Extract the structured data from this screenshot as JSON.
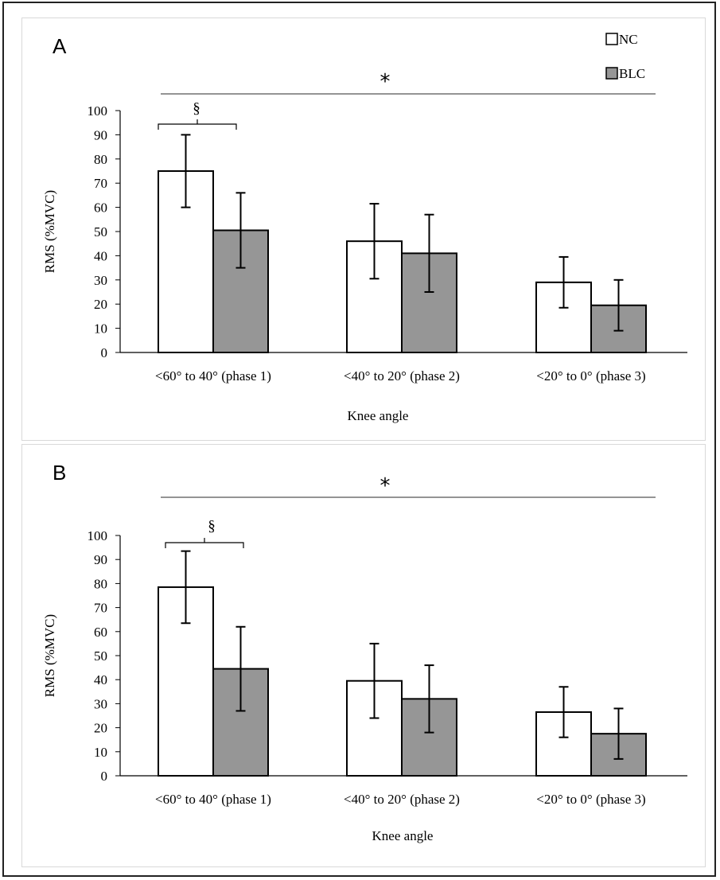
{
  "chart_data": [
    {
      "type": "bar",
      "panel": "A",
      "categories": [
        "<60° to 40° (phase 1)",
        "<40° to 20° (phase 2)",
        "<20° to 0° (phase 3)"
      ],
      "series": [
        {
          "name": "NC",
          "color": "#ffffff",
          "values": [
            75,
            46,
            29
          ],
          "errors": [
            15,
            15.5,
            10.5
          ]
        },
        {
          "name": "BLC",
          "color": "#969696",
          "values": [
            50.5,
            41,
            19.5
          ],
          "errors": [
            15.5,
            16,
            10.5
          ]
        }
      ],
      "xlabel": "Knee angle",
      "ylabel": "RMS (%MVC)",
      "ylim": [
        0,
        100
      ],
      "yticks": [
        "0",
        "10",
        "20",
        "30",
        "40",
        "50",
        "60",
        "70",
        "80",
        "90",
        "100"
      ],
      "annotations": {
        "overall": "*",
        "phase1": "§"
      },
      "legend_position": "top-right"
    },
    {
      "type": "bar",
      "panel": "B",
      "categories": [
        "<60° to 40° (phase 1)",
        "<40° to 20° (phase 2)",
        "<20° to 0° (phase 3)"
      ],
      "series": [
        {
          "name": "NC",
          "color": "#ffffff",
          "values": [
            78.5,
            39.5,
            26.5
          ],
          "errors": [
            15,
            15.5,
            10.5
          ]
        },
        {
          "name": "BLC",
          "color": "#969696",
          "values": [
            44.5,
            32,
            17.5
          ],
          "errors": [
            17.5,
            14,
            10.5
          ]
        }
      ],
      "xlabel": "Knee angle",
      "ylabel": "RMS (%MVC)",
      "ylim": [
        0,
        100
      ],
      "yticks": [
        "0",
        "10",
        "20",
        "30",
        "40",
        "50",
        "60",
        "70",
        "80",
        "90",
        "100"
      ],
      "annotations": {
        "overall": "*",
        "phase1": "§"
      },
      "legend_position": "none"
    }
  ]
}
